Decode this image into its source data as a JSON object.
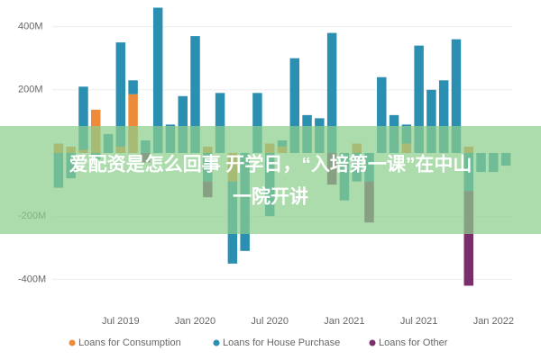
{
  "chart_data": {
    "type": "stacked_bar",
    "categories": [
      null,
      null,
      null,
      null,
      null,
      "Jul 2019",
      null,
      null,
      null,
      null,
      null,
      "Jan 2020",
      null,
      null,
      null,
      null,
      null,
      "Jul 2020",
      null,
      null,
      null,
      null,
      null,
      "Jan 2021",
      null,
      null,
      null,
      null,
      null,
      "Jul 2021",
      null,
      null,
      null,
      null,
      null,
      "Jan 2022",
      null
    ],
    "series": [
      {
        "name": "Loans for Consumption",
        "color": "#ed8b3a",
        "values": [
          30,
          20,
          10,
          137,
          0,
          20,
          186,
          0,
          0,
          0,
          0,
          0,
          20,
          0,
          -90,
          0,
          0,
          30,
          20,
          0,
          0,
          0,
          0,
          0,
          30,
          0,
          0,
          0,
          30,
          0,
          0,
          0,
          0,
          20,
          0,
          0,
          0
        ]
      },
      {
        "name": "Loans for House Purchase",
        "color": "#2a8fb0",
        "values": [
          -110,
          -80,
          200,
          -20,
          60,
          330,
          44,
          40,
          460,
          90,
          180,
          370,
          -90,
          190,
          -260,
          -310,
          190,
          -200,
          20,
          300,
          120,
          110,
          380,
          -150,
          -90,
          -90,
          240,
          120,
          60,
          340,
          200,
          230,
          360,
          -120,
          -60,
          -60,
          -40
        ]
      },
      {
        "name": "Loans for Other",
        "color": "#7a2e6c",
        "values": [
          0,
          0,
          0,
          0,
          0,
          0,
          0,
          -30,
          0,
          0,
          0,
          0,
          -50,
          0,
          0,
          0,
          0,
          0,
          0,
          0,
          0,
          0,
          -100,
          0,
          0,
          -130,
          0,
          0,
          0,
          0,
          0,
          0,
          0,
          -300,
          0,
          0,
          0
        ]
      }
    ],
    "ylim": [
      -470,
      470
    ],
    "yticks": [
      {
        "value": 400,
        "label": "400M"
      },
      {
        "value": 200,
        "label": "200M"
      },
      {
        "value": -200,
        "label": "-200M"
      },
      {
        "value": -400,
        "label": "-400M"
      }
    ],
    "grid": true,
    "annotations": [
      "爱配资是怎么回事 开学日，“入培第一课”在中山",
      "一院开讲"
    ]
  }
}
